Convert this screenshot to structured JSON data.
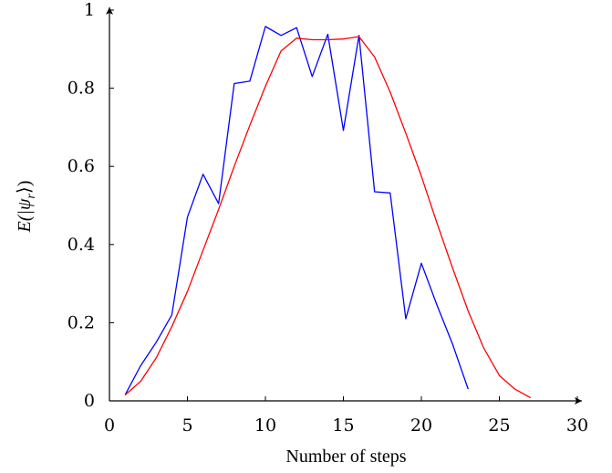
{
  "chart_data": {
    "type": "line",
    "title": "",
    "xlabel": "Number of steps",
    "ylabel": "E(|ψ_r⟩)",
    "ylabel_parts": {
      "base": "E(|ψ",
      "sub": "r",
      "tail": "⟩)"
    },
    "xlim": [
      0,
      30
    ],
    "ylim": [
      0,
      1
    ],
    "x_ticks": [
      0,
      5,
      10,
      15,
      20,
      25,
      30
    ],
    "y_ticks": [
      0,
      0.2,
      0.4,
      0.6,
      0.8,
      1
    ],
    "y_tick_labels": [
      "0",
      "0.2",
      "0.4",
      "0.6",
      "0.8",
      "1"
    ],
    "grid": false,
    "legend": "none",
    "series": [
      {
        "color": "#0000ff",
        "x": [
          1,
          2,
          3,
          4,
          5,
          6,
          7,
          8,
          9,
          10,
          11,
          12,
          13,
          14,
          15,
          16,
          17,
          18,
          19,
          20,
          21,
          22,
          23
        ],
        "y": [
          0.015,
          0.09,
          0.15,
          0.22,
          0.47,
          0.58,
          0.505,
          0.812,
          0.818,
          0.958,
          0.935,
          0.955,
          0.83,
          0.938,
          0.692,
          0.935,
          0.535,
          0.532,
          0.21,
          0.352,
          0.245,
          0.145,
          0.03
        ]
      },
      {
        "color": "#ff0000",
        "x": [
          1,
          2,
          3,
          4,
          5,
          6,
          7,
          8,
          9,
          10,
          11,
          12,
          13,
          14,
          15,
          16,
          17,
          18,
          19,
          20,
          21,
          22,
          23,
          24,
          25,
          26,
          27
        ],
        "y": [
          0.015,
          0.05,
          0.11,
          0.19,
          0.28,
          0.385,
          0.49,
          0.6,
          0.705,
          0.805,
          0.895,
          0.928,
          0.924,
          0.924,
          0.926,
          0.932,
          0.88,
          0.79,
          0.685,
          0.575,
          0.455,
          0.34,
          0.23,
          0.135,
          0.065,
          0.03,
          0.008
        ]
      }
    ]
  }
}
